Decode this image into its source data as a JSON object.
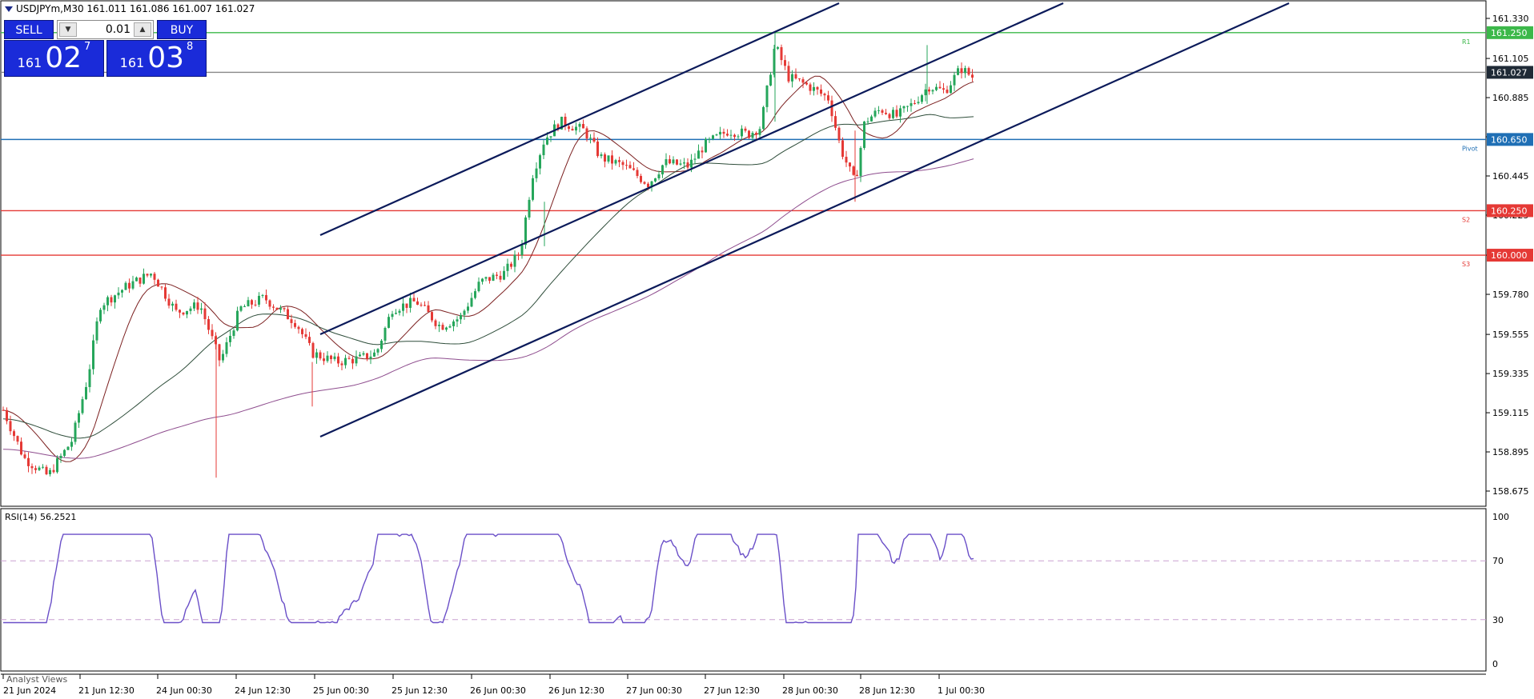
{
  "header": {
    "symbol_title": "USDJPYm,M30  161.011 161.086 161.007 161.027"
  },
  "trade_panel": {
    "sell_label": "SELL",
    "buy_label": "BUY",
    "lot_value": "0.01",
    "sell_price": {
      "prefix": "161",
      "big": "02",
      "sup": "7"
    },
    "buy_price": {
      "prefix": "161",
      "big": "03",
      "sup": "8"
    }
  },
  "price_axis": {
    "ticks": [
      "161.330",
      "161.105",
      "160.885",
      "160.665",
      "160.445",
      "160.225",
      "160.000",
      "159.780",
      "159.555",
      "159.335",
      "159.115",
      "158.895",
      "158.675"
    ]
  },
  "levels": [
    {
      "price": 161.25,
      "label": "161.250",
      "side_label": "R1",
      "color": "#3cb84a"
    },
    {
      "price": 161.027,
      "label": "161.027",
      "side_label": "",
      "color": "#888888"
    },
    {
      "price": 160.65,
      "label": "160.650",
      "side_label": "Pivot",
      "color": "#1f6fb5"
    },
    {
      "price": 160.25,
      "label": "160.250",
      "side_label": "S2",
      "color": "#e53935"
    },
    {
      "price": 160.0,
      "label": "160.000",
      "side_label": "S3",
      "color": "#e53935"
    }
  ],
  "time_axis": {
    "labels": [
      "21 Jun 2024",
      "21 Jun 12:30",
      "24 Jun 00:30",
      "24 Jun 12:30",
      "25 Jun 00:30",
      "25 Jun 12:30",
      "26 Jun 00:30",
      "26 Jun 12:30",
      "27 Jun 00:30",
      "27 Jun 12:30",
      "28 Jun 00:30",
      "28 Jun 12:30",
      "1 Jul 00:30"
    ]
  },
  "rsi": {
    "label": "RSI(14) 56.2521",
    "levels": [
      "100",
      "70",
      "30",
      "0"
    ]
  },
  "footer": {
    "analyst_views": "Analyst Views"
  },
  "colors": {
    "bull": "#26a65b",
    "bear": "#e53935",
    "channel": "#0b1a5a",
    "ma_fast": "#7b1f1f",
    "ma_mid": "#2e4d3a",
    "ma_slow": "#8e4d8e",
    "rsi_line": "#6a4fc8",
    "rsi_level": "#c9a0d0"
  },
  "chart_data": {
    "type": "candlestick",
    "symbol": "USDJPYm",
    "timeframe": "M30",
    "ylim": [
      158.56,
      161.4
    ],
    "channel_lines_approx": [
      {
        "from": [
          "24 Jun 12:30",
          160.225
        ],
        "to": [
          "28 Jun 00:30",
          161.37
        ]
      },
      {
        "from": [
          "25 Jun 00:30",
          159.55
        ],
        "to": [
          "1 Jul",
          161.37
        ]
      },
      {
        "from": [
          "25 Jun 00:30",
          159.1
        ],
        "to": [
          "1 Jul",
          161.37
        ]
      }
    ],
    "rsi": {
      "period": 14,
      "last": 56.2521,
      "ylim": [
        0,
        100
      ],
      "levels": [
        30,
        70
      ]
    }
  }
}
